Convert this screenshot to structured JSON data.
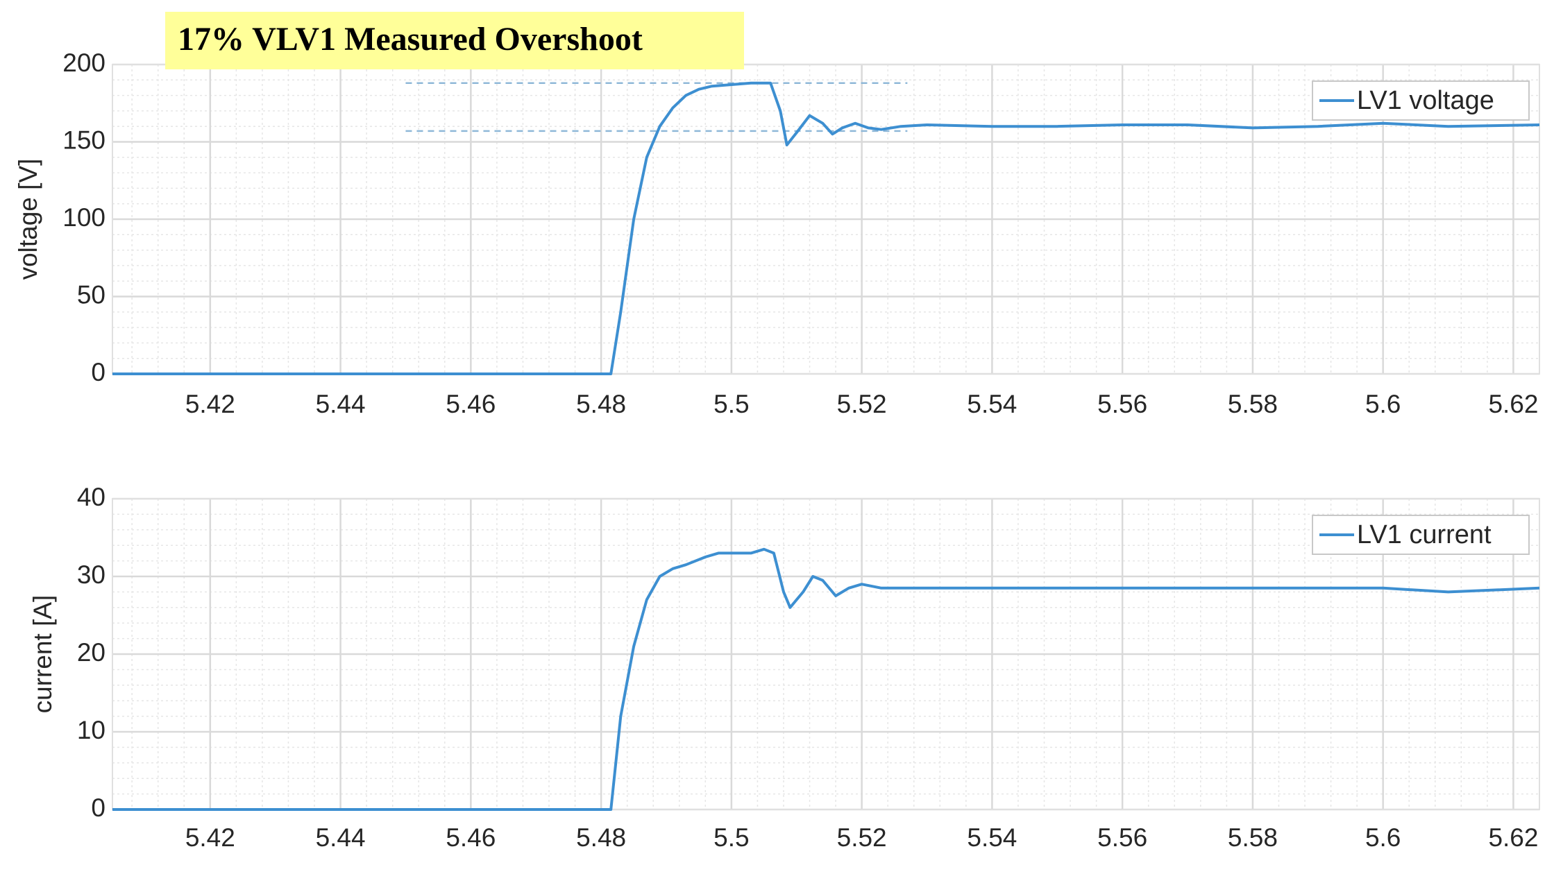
{
  "chart_data": [
    {
      "type": "line",
      "annotation": "17% VLV1 Measured Overshoot",
      "y_label": "voltage [V]",
      "xlim": [
        5.405,
        5.624
      ],
      "xticks": [
        5.42,
        5.44,
        5.46,
        5.48,
        5.5,
        5.52,
        5.54,
        5.56,
        5.58,
        5.6,
        5.62
      ],
      "ylim": [
        0,
        200
      ],
      "yticks": [
        0,
        50,
        100,
        150,
        200
      ],
      "grid": true,
      "minor_grid": true,
      "legend": "upper right",
      "reference_lines": {
        "values": [
          188,
          157
        ],
        "x": [
          5.45,
          5.527
        ],
        "color": "#8fb8d8"
      },
      "x": [
        5.405,
        5.42,
        5.44,
        5.46,
        5.47,
        5.48,
        5.4815,
        5.483,
        5.485,
        5.487,
        5.489,
        5.491,
        5.493,
        5.495,
        5.497,
        5.5,
        5.503,
        5.506,
        5.5075,
        5.5085,
        5.51,
        5.512,
        5.514,
        5.5155,
        5.517,
        5.519,
        5.521,
        5.523,
        5.526,
        5.53,
        5.54,
        5.55,
        5.56,
        5.57,
        5.58,
        5.59,
        5.6,
        5.61,
        5.624
      ],
      "series": [
        {
          "name": "LV1 voltage",
          "color": "#3d8fd1",
          "values": [
            0,
            0,
            0,
            0,
            0,
            0,
            0,
            40,
            100,
            140,
            160,
            172,
            180,
            184,
            186,
            187,
            188,
            188,
            170,
            148,
            156,
            167,
            162,
            155,
            159,
            162,
            159,
            158,
            160,
            161,
            160,
            160,
            161,
            161,
            159,
            160,
            162,
            160,
            161
          ]
        }
      ]
    },
    {
      "type": "line",
      "y_label": "current [A]",
      "xlim": [
        5.405,
        5.624
      ],
      "xticks": [
        5.42,
        5.44,
        5.46,
        5.48,
        5.5,
        5.52,
        5.54,
        5.56,
        5.58,
        5.6,
        5.62
      ],
      "ylim": [
        0,
        40
      ],
      "yticks": [
        0,
        10,
        20,
        30,
        40
      ],
      "grid": true,
      "minor_grid": true,
      "legend": "upper right",
      "x": [
        5.405,
        5.42,
        5.44,
        5.46,
        5.48,
        5.4815,
        5.483,
        5.485,
        5.487,
        5.489,
        5.491,
        5.493,
        5.496,
        5.498,
        5.5,
        5.503,
        5.505,
        5.5065,
        5.508,
        5.509,
        5.511,
        5.5125,
        5.514,
        5.516,
        5.518,
        5.52,
        5.523,
        5.53,
        5.54,
        5.56,
        5.58,
        5.6,
        5.61,
        5.624
      ],
      "series": [
        {
          "name": "LV1 current",
          "color": "#3d8fd1",
          "values": [
            0,
            0,
            0,
            0,
            0,
            0,
            12,
            21,
            27,
            30,
            31,
            31.5,
            32.5,
            33,
            33,
            33,
            33.5,
            33,
            28,
            26,
            28,
            30,
            29.5,
            27.5,
            28.5,
            29,
            28.5,
            28.5,
            28.5,
            28.5,
            28.5,
            28.5,
            28,
            28.5
          ]
        }
      ]
    }
  ]
}
